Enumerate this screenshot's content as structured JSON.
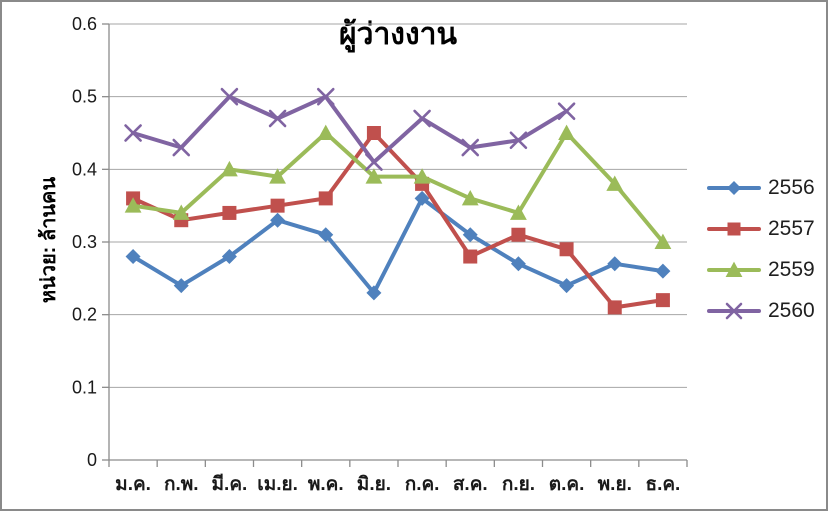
{
  "chart_data": {
    "type": "line",
    "title": "ผู้ว่างงาน",
    "ylabel": "หน่วย: ล้านคน",
    "xlabel": "",
    "categories": [
      "ม.ค.",
      "ก.พ.",
      "มี.ค.",
      "เม.ย.",
      "พ.ค.",
      "มิ.ย.",
      "ก.ค.",
      "ส.ค.",
      "ก.ย.",
      "ต.ค.",
      "พ.ย.",
      "ธ.ค."
    ],
    "y_ticks": [
      "0",
      "0.1",
      "0.2",
      "0.3",
      "0.4",
      "0.5",
      "0.6"
    ],
    "ylim": [
      0,
      0.6
    ],
    "grid": true,
    "legend_position": "right",
    "series": [
      {
        "name": "2556",
        "color": "#4F81BD",
        "marker": "diamond",
        "values": [
          0.28,
          0.24,
          0.28,
          0.33,
          0.31,
          0.23,
          0.36,
          0.31,
          0.27,
          0.24,
          0.27,
          0.26
        ]
      },
      {
        "name": "2557",
        "color": "#C0504D",
        "marker": "square",
        "values": [
          0.36,
          0.33,
          0.34,
          0.35,
          0.36,
          0.45,
          0.38,
          0.28,
          0.31,
          0.29,
          0.21,
          0.22
        ]
      },
      {
        "name": "2559",
        "color": "#9BBB59",
        "marker": "triangle",
        "values": [
          0.35,
          0.34,
          0.4,
          0.39,
          0.45,
          0.39,
          0.39,
          0.36,
          0.34,
          0.45,
          0.38,
          0.3
        ]
      },
      {
        "name": "2560",
        "color": "#8064A2",
        "marker": "x",
        "values": [
          0.45,
          0.43,
          0.5,
          0.47,
          0.5,
          0.41,
          0.47,
          0.43,
          0.44,
          0.48,
          null,
          null
        ]
      }
    ],
    "axis_color": "#8c8c8c",
    "grid_color": "#a6a6a6"
  }
}
